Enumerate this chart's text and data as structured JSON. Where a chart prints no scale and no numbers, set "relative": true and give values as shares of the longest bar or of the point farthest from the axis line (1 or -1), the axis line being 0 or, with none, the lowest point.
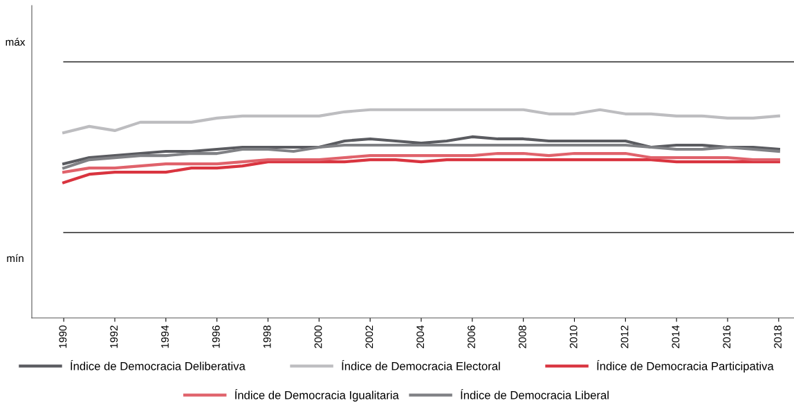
{
  "chart_data": {
    "type": "line",
    "relative": true,
    "x": [
      1990,
      1991,
      1992,
      1993,
      1994,
      1995,
      1996,
      1997,
      1998,
      1999,
      2000,
      2001,
      2002,
      2003,
      2004,
      2005,
      2006,
      2007,
      2008,
      2009,
      2010,
      2011,
      2012,
      2013,
      2014,
      2015,
      2016,
      2017,
      2018
    ],
    "xlim": [
      1988.75,
      2018.6
    ],
    "xticks": [
      1990,
      1992,
      1994,
      1996,
      1998,
      2000,
      2002,
      2004,
      2006,
      2008,
      2010,
      2012,
      2014,
      2016,
      2018
    ],
    "annotations": [
      "máx",
      "mín"
    ],
    "ref_lines": [
      {
        "axis": "y",
        "value": 1.23,
        "color": "#222222"
      },
      {
        "axis": "y",
        "value": 0.41,
        "color": "#222222"
      }
    ],
    "series": [
      {
        "name": "Índice de Democracia Deliberativa",
        "color": "#5a5b60",
        "values": [
          0.74,
          0.77,
          0.78,
          0.79,
          0.8,
          0.8,
          0.81,
          0.82,
          0.82,
          0.82,
          0.82,
          0.85,
          0.86,
          0.85,
          0.84,
          0.85,
          0.87,
          0.86,
          0.86,
          0.85,
          0.85,
          0.85,
          0.85,
          0.82,
          0.83,
          0.83,
          0.82,
          0.82,
          0.81
        ]
      },
      {
        "name": "Índice de Democracia Electoral",
        "color": "#bdbdc0",
        "values": [
          0.89,
          0.92,
          0.9,
          0.94,
          0.94,
          0.94,
          0.96,
          0.97,
          0.97,
          0.97,
          0.97,
          0.99,
          1,
          1,
          1,
          1,
          1,
          1,
          1,
          0.98,
          0.98,
          1,
          0.98,
          0.98,
          0.97,
          0.97,
          0.96,
          0.96,
          0.97
        ]
      },
      {
        "name": "Índice de Democracia Participativa",
        "color": "#d9343f",
        "values": [
          0.65,
          0.69,
          0.7,
          0.7,
          0.7,
          0.72,
          0.72,
          0.73,
          0.75,
          0.75,
          0.75,
          0.75,
          0.76,
          0.76,
          0.75,
          0.76,
          0.76,
          0.76,
          0.76,
          0.76,
          0.76,
          0.76,
          0.76,
          0.76,
          0.75,
          0.75,
          0.75,
          0.75,
          0.75
        ]
      },
      {
        "name": "Índice de Democracia Igualitaria",
        "color": "#e0626b",
        "values": [
          0.7,
          0.72,
          0.72,
          0.73,
          0.74,
          0.74,
          0.74,
          0.75,
          0.76,
          0.76,
          0.76,
          0.77,
          0.78,
          0.78,
          0.78,
          0.78,
          0.78,
          0.79,
          0.79,
          0.78,
          0.79,
          0.79,
          0.79,
          0.77,
          0.77,
          0.77,
          0.77,
          0.76,
          0.76
        ]
      },
      {
        "name": "Índice de Democracia Liberal",
        "color": "#808185",
        "values": [
          0.72,
          0.76,
          0.77,
          0.78,
          0.78,
          0.79,
          0.79,
          0.81,
          0.81,
          0.8,
          0.82,
          0.83,
          0.83,
          0.83,
          0.83,
          0.83,
          0.83,
          0.83,
          0.83,
          0.83,
          0.83,
          0.83,
          0.83,
          0.82,
          0.81,
          0.81,
          0.82,
          0.81,
          0.8
        ]
      }
    ],
    "legend": "bottom",
    "grid": false,
    "marker": "none",
    "line_style": "solid"
  }
}
